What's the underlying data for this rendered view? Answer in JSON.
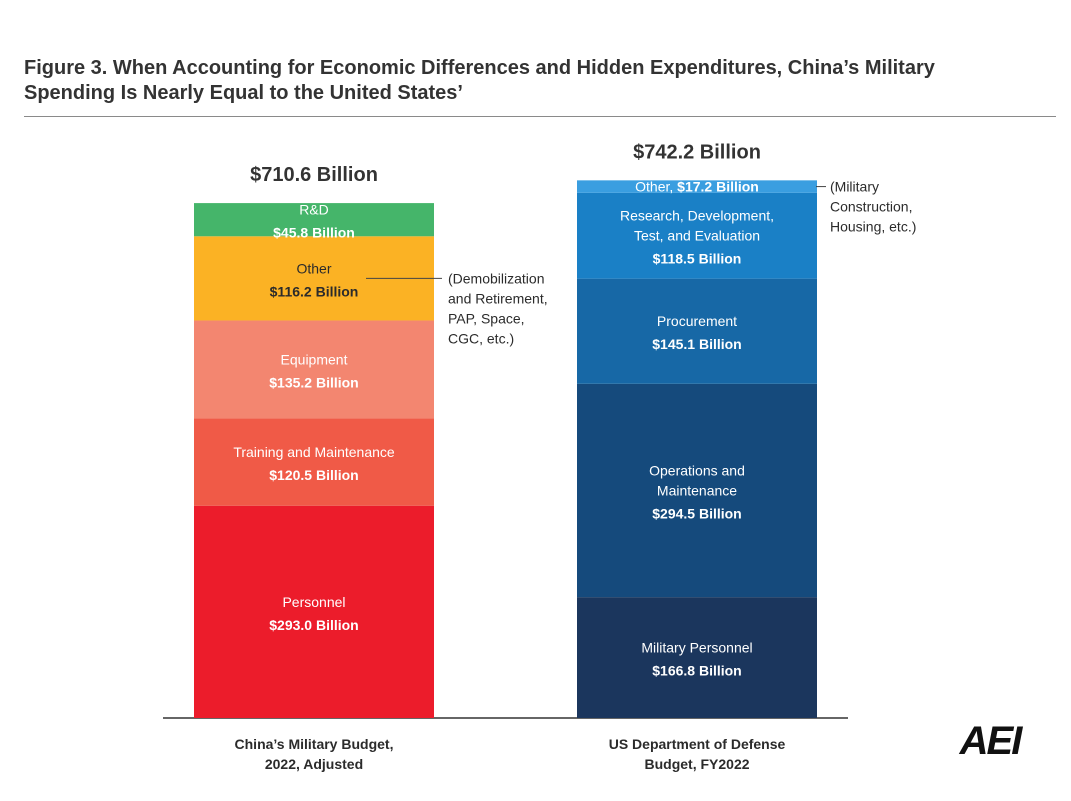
{
  "header": {
    "title_line1": "Figure 3. When Accounting for Economic Differences and Hidden Expenditures, China’s Military",
    "title_line2": "Spending Is Nearly Equal to the United States’"
  },
  "logo_text": "AEI",
  "chart_data": {
    "type": "bar",
    "stacked": true,
    "title": "Figure 3. When Accounting for Economic Differences and Hidden Expenditures, China’s Military Spending Is Nearly Equal to the United States’",
    "units": "Billion USD",
    "grid": false,
    "categories": [
      {
        "label_lines": [
          "China’s Military Budget,",
          "2022, Adjusted"
        ],
        "total": 710.6,
        "total_label": "$710.6 Billion",
        "segments": [
          {
            "name_lines": [
              "Personnel"
            ],
            "value": 293.0,
            "value_label": "$293.0 Billion",
            "color": "#ec1c2b",
            "text": "light"
          },
          {
            "name_lines": [
              "Training and Maintenance"
            ],
            "value": 120.5,
            "value_label": "$120.5 Billion",
            "color": "#f05a47",
            "text": "light"
          },
          {
            "name_lines": [
              "Equipment"
            ],
            "value": 135.2,
            "value_label": "$135.2 Billion",
            "color": "#f38670",
            "text": "light"
          },
          {
            "name_lines": [
              "Other"
            ],
            "value": 116.2,
            "value_label": "$116.2 Billion",
            "color": "#fbb224",
            "text": "dark",
            "annotation_lines": [
              "(Demobilization",
              "and Retirement,",
              "PAP, Space,",
              "CGC, etc.)"
            ]
          },
          {
            "name_lines": [
              "R&D"
            ],
            "value": 45.8,
            "value_label": "$45.8 Billion",
            "color": "#45b56a",
            "text": "light"
          }
        ]
      },
      {
        "label_lines": [
          "US Department of Defense",
          "Budget, FY2022"
        ],
        "total": 742.2,
        "total_label": "$742.2 Billion",
        "segments": [
          {
            "name_lines": [
              "Military Personnel"
            ],
            "value": 166.8,
            "value_label": "$166.8 Billion",
            "color": "#1b365d",
            "text": "light"
          },
          {
            "name_lines": [
              "Operations and",
              "Maintenance"
            ],
            "value": 294.5,
            "value_label": "$294.5 Billion",
            "color": "#154a7c",
            "text": "light"
          },
          {
            "name_lines": [
              "Procurement"
            ],
            "value": 145.1,
            "value_label": "$145.1 Billion",
            "color": "#1768a6",
            "text": "light"
          },
          {
            "name_lines": [
              "Research, Development,",
              "Test, and Evaluation"
            ],
            "value": 118.5,
            "value_label": "$118.5 Billion",
            "color": "#1a80c6",
            "text": "light"
          },
          {
            "name_lines": [
              "Other, "
            ],
            "value": 17.2,
            "value_label": "$17.2 Billion",
            "color": "#3a9ee0",
            "text": "light",
            "inline": true,
            "annotation_lines": [
              "(Military",
              "Construction,",
              "Housing, etc.)"
            ]
          }
        ]
      }
    ]
  }
}
